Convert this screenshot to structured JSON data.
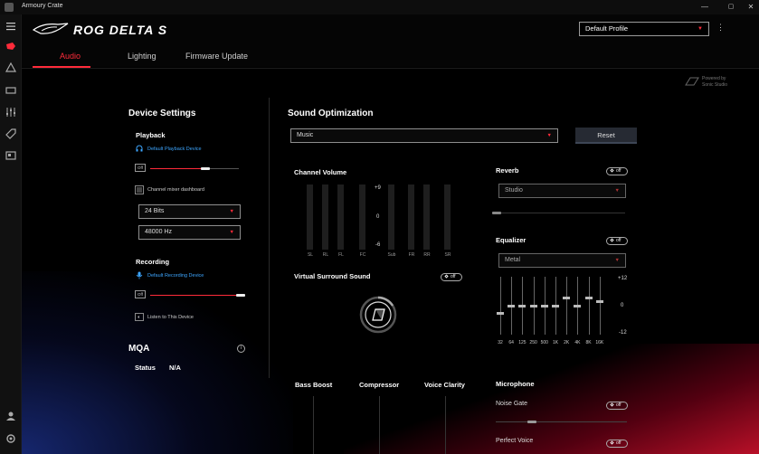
{
  "window": {
    "title": "Armoury Crate",
    "min": "—",
    "max": "▢",
    "close": "✕"
  },
  "header": {
    "product_name": "ROG DELTA S",
    "profile": "Default Profile",
    "tabs": [
      "Audio",
      "Lighting",
      "Firmware Update"
    ],
    "active_tab": "Audio",
    "powered_by": "Powered by",
    "powered_by_brand": "Sonic Studio"
  },
  "device_settings": {
    "title": "Device Settings",
    "playback_label": "Playback",
    "playback_device": "Default Playback Device",
    "playback_mute": "Off",
    "playback_volume": 0.62,
    "channel_mixer": "Channel mixer dashboard",
    "bit_depth": "24 Bits",
    "sample_rate": "48000 Hz",
    "recording_label": "Recording",
    "recording_device": "Default Recording Device",
    "recording_mute": "Off",
    "recording_volume": 1.0,
    "listen_label": "Listen to This Device"
  },
  "mqa": {
    "title": "MQA",
    "status_label": "Status",
    "status_value": "N/A",
    "info": "i"
  },
  "sound_optimization": {
    "title": "Sound Optimization",
    "preset": "Music",
    "reset_label": "Reset",
    "channel_volume": {
      "title": "Channel Volume",
      "scale": [
        "+9",
        "0",
        "-6"
      ],
      "channels": [
        "SL",
        "RL",
        "FL",
        "FC",
        "Sub",
        "FR",
        "RR",
        "SR"
      ]
    },
    "virtual_surround": {
      "title": "Virtual Surround Sound",
      "state": "off"
    },
    "reverb": {
      "title": "Reverb",
      "state": "off",
      "preset": "Studio"
    },
    "equalizer": {
      "title": "Equalizer",
      "state": "off",
      "preset": "Metal",
      "scale": [
        "+12",
        "0",
        "-12"
      ],
      "bands": [
        "32",
        "64",
        "125",
        "250",
        "500",
        "1K",
        "2K",
        "4K",
        "8K",
        "16K"
      ],
      "gains": [
        -2,
        0,
        0,
        0,
        0,
        0,
        2,
        0,
        2,
        1
      ]
    },
    "bottom_labels": [
      "Bass Boost",
      "Compressor",
      "Voice Clarity"
    ],
    "microphone": {
      "title": "Microphone",
      "noise_gate": "Noise Gate",
      "noise_gate_state": "off",
      "perfect_voice": "Perfect Voice",
      "perfect_voice_state": "off"
    }
  },
  "colors": {
    "accent": "#ff2b3a",
    "link": "#3da6ff",
    "bg": "#000000"
  }
}
